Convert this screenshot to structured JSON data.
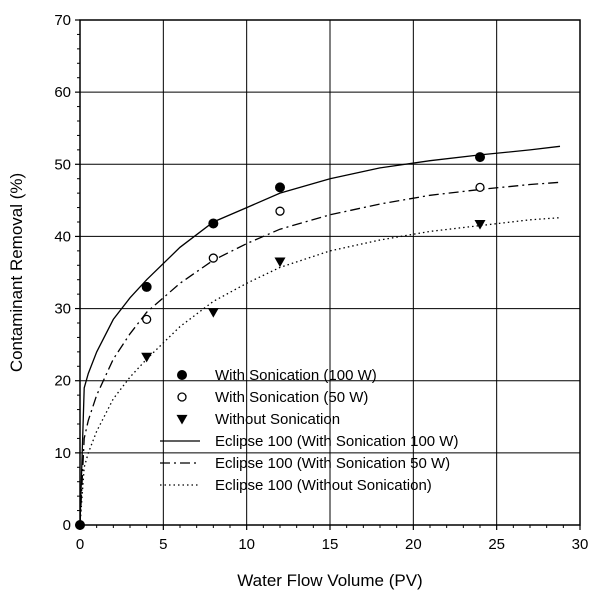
{
  "chart_data": {
    "type": "scatter",
    "title": "",
    "xlabel": "Water Flow Volume (PV)",
    "ylabel": "Contaminant Removal (%)",
    "xlim": [
      0,
      30
    ],
    "ylim": [
      0,
      70
    ],
    "xticks": [
      "0",
      "5",
      "10",
      "15",
      "20",
      "25",
      "30"
    ],
    "yticks": [
      "0",
      "10",
      "20",
      "30",
      "40",
      "50",
      "60",
      "70"
    ],
    "grid": true,
    "legend_position": "lower-right",
    "points": [
      {
        "name": "With Sonication (100 W)",
        "marker": "filled-circle",
        "x": [
          0,
          4,
          8,
          12,
          24
        ],
        "y": [
          0,
          33,
          41.8,
          46.8,
          51
        ]
      },
      {
        "name": "With Sonication (50 W)",
        "marker": "open-circle",
        "x": [
          4,
          8,
          12,
          24
        ],
        "y": [
          28.5,
          37,
          43.5,
          46.8
        ]
      },
      {
        "name": "Without Sonication",
        "marker": "filled-triangle-down",
        "x": [
          4,
          8,
          12,
          24
        ],
        "y": [
          23.3,
          29.5,
          36.5,
          41.7
        ]
      }
    ],
    "curves": [
      {
        "name": "Eclipse 100 (With Sonication 100 W)",
        "style": "solid",
        "x": [
          0,
          0.25,
          0.5,
          1,
          2,
          3,
          4,
          6,
          8,
          10,
          12,
          15,
          18,
          21,
          24,
          27,
          28.8
        ],
        "y": [
          0,
          19,
          21,
          24,
          28.5,
          31.5,
          34,
          38.5,
          42,
          44,
          46,
          48,
          49.5,
          50.5,
          51.3,
          52,
          52.5
        ]
      },
      {
        "name": "Eclipse 100 (With Sonication 50 W)",
        "style": "dash-dot",
        "x": [
          0,
          0.25,
          0.5,
          1,
          2,
          3,
          4,
          6,
          8,
          10,
          12,
          15,
          18,
          21,
          24,
          27,
          28.8
        ],
        "y": [
          0,
          12,
          14.5,
          18,
          23,
          26.5,
          29.5,
          33.5,
          36.7,
          39,
          41,
          43,
          44.5,
          45.7,
          46.5,
          47.2,
          47.5
        ]
      },
      {
        "name": "Eclipse 100 (Without Sonication)",
        "style": "dotted",
        "x": [
          0,
          0.25,
          0.5,
          1,
          2,
          3,
          4,
          6,
          8,
          10,
          12,
          15,
          18,
          21,
          24,
          27,
          28.8
        ],
        "y": [
          0,
          8,
          10,
          13,
          17.5,
          20.5,
          23,
          27.5,
          31,
          33.5,
          35.7,
          38,
          39.5,
          40.7,
          41.5,
          42.3,
          42.6
        ]
      }
    ]
  }
}
